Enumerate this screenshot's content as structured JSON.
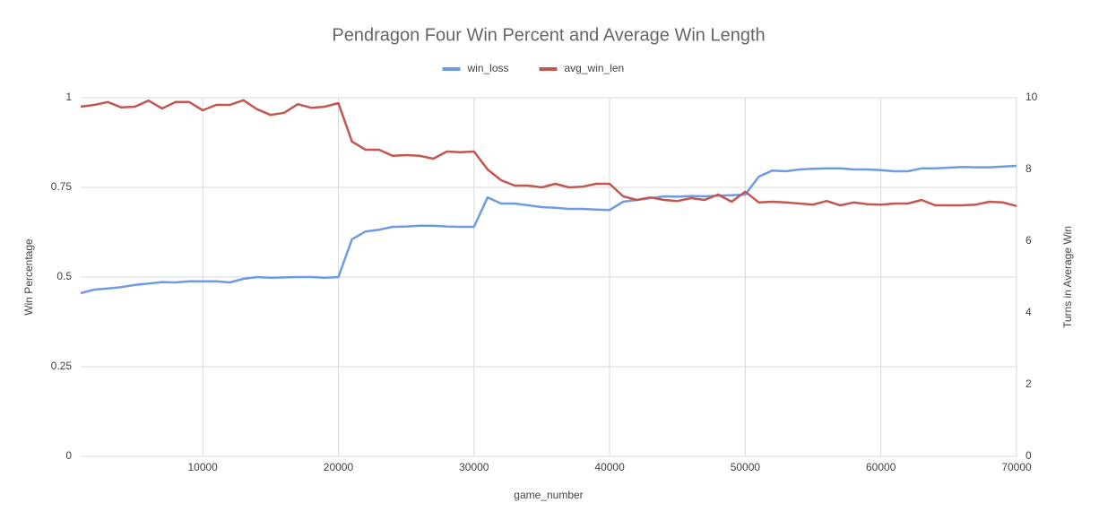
{
  "chart_data": {
    "type": "line",
    "title": "Pendragon Four Win Percent and Average Win Length",
    "xlabel": "game_number",
    "ylabel": "Win Percentage",
    "y2label": "Turns in Average Win",
    "legend": "top",
    "grid": true,
    "x": [
      1000,
      2000,
      3000,
      4000,
      5000,
      6000,
      7000,
      8000,
      9000,
      10000,
      11000,
      12000,
      13000,
      14000,
      15000,
      16000,
      17000,
      18000,
      19000,
      20000,
      21000,
      22000,
      23000,
      24000,
      25000,
      26000,
      27000,
      28000,
      29000,
      30000,
      31000,
      32000,
      33000,
      34000,
      35000,
      36000,
      37000,
      38000,
      39000,
      40000,
      41000,
      42000,
      43000,
      44000,
      45000,
      46000,
      47000,
      48000,
      49000,
      50000,
      51000,
      52000,
      53000,
      54000,
      55000,
      56000,
      57000,
      58000,
      59000,
      60000,
      61000,
      62000,
      63000,
      64000,
      65000,
      66000,
      67000,
      68000,
      69000,
      70000
    ],
    "xlim": [
      1000,
      70000
    ],
    "xticks": [
      10000,
      20000,
      30000,
      40000,
      50000,
      60000,
      70000
    ],
    "ylim": [
      0,
      1
    ],
    "yticks": [
      0,
      0.25,
      0.5,
      0.75,
      1
    ],
    "y2lim": [
      0,
      10
    ],
    "y2ticks": [
      0,
      2,
      4,
      6,
      8,
      10
    ],
    "series": [
      {
        "name": "win_loss",
        "color": "#6f9be3",
        "values": [
          0.455,
          0.465,
          0.468,
          0.472,
          0.478,
          0.482,
          0.486,
          0.485,
          0.488,
          0.488,
          0.488,
          0.485,
          0.495,
          0.5,
          0.498,
          0.499,
          0.5,
          0.5,
          0.498,
          0.5,
          0.605,
          0.627,
          0.632,
          0.64,
          0.641,
          0.643,
          0.643,
          0.641,
          0.64,
          0.64,
          0.722,
          0.705,
          0.705,
          0.7,
          0.695,
          0.693,
          0.69,
          0.69,
          0.688,
          0.687,
          0.71,
          0.715,
          0.72,
          0.725,
          0.724,
          0.726,
          0.725,
          0.727,
          0.728,
          0.73,
          0.78,
          0.797,
          0.795,
          0.8,
          0.802,
          0.803,
          0.803,
          0.8,
          0.8,
          0.798,
          0.795,
          0.795,
          0.803,
          0.803,
          0.805,
          0.807,
          0.806,
          0.806,
          0.808,
          0.81
        ]
      },
      {
        "name": "avg_win_len",
        "color": "#c2574f",
        "axis": "y2",
        "values": [
          9.75,
          9.8,
          9.88,
          9.73,
          9.75,
          9.92,
          9.7,
          9.88,
          9.88,
          9.65,
          9.8,
          9.8,
          9.93,
          9.68,
          9.52,
          9.58,
          9.82,
          9.72,
          9.75,
          9.85,
          8.78,
          8.55,
          8.55,
          8.38,
          8.4,
          8.38,
          8.3,
          8.5,
          8.48,
          8.5,
          8.0,
          7.7,
          7.55,
          7.55,
          7.5,
          7.6,
          7.5,
          7.52,
          7.6,
          7.6,
          7.25,
          7.15,
          7.22,
          7.15,
          7.12,
          7.2,
          7.15,
          7.3,
          7.1,
          7.38,
          7.08,
          7.1,
          7.08,
          7.05,
          7.02,
          7.12,
          7.0,
          7.08,
          7.03,
          7.02,
          7.05,
          7.05,
          7.15,
          7.0,
          7.0,
          7.0,
          7.02,
          7.1,
          7.08,
          6.98
        ]
      }
    ]
  }
}
